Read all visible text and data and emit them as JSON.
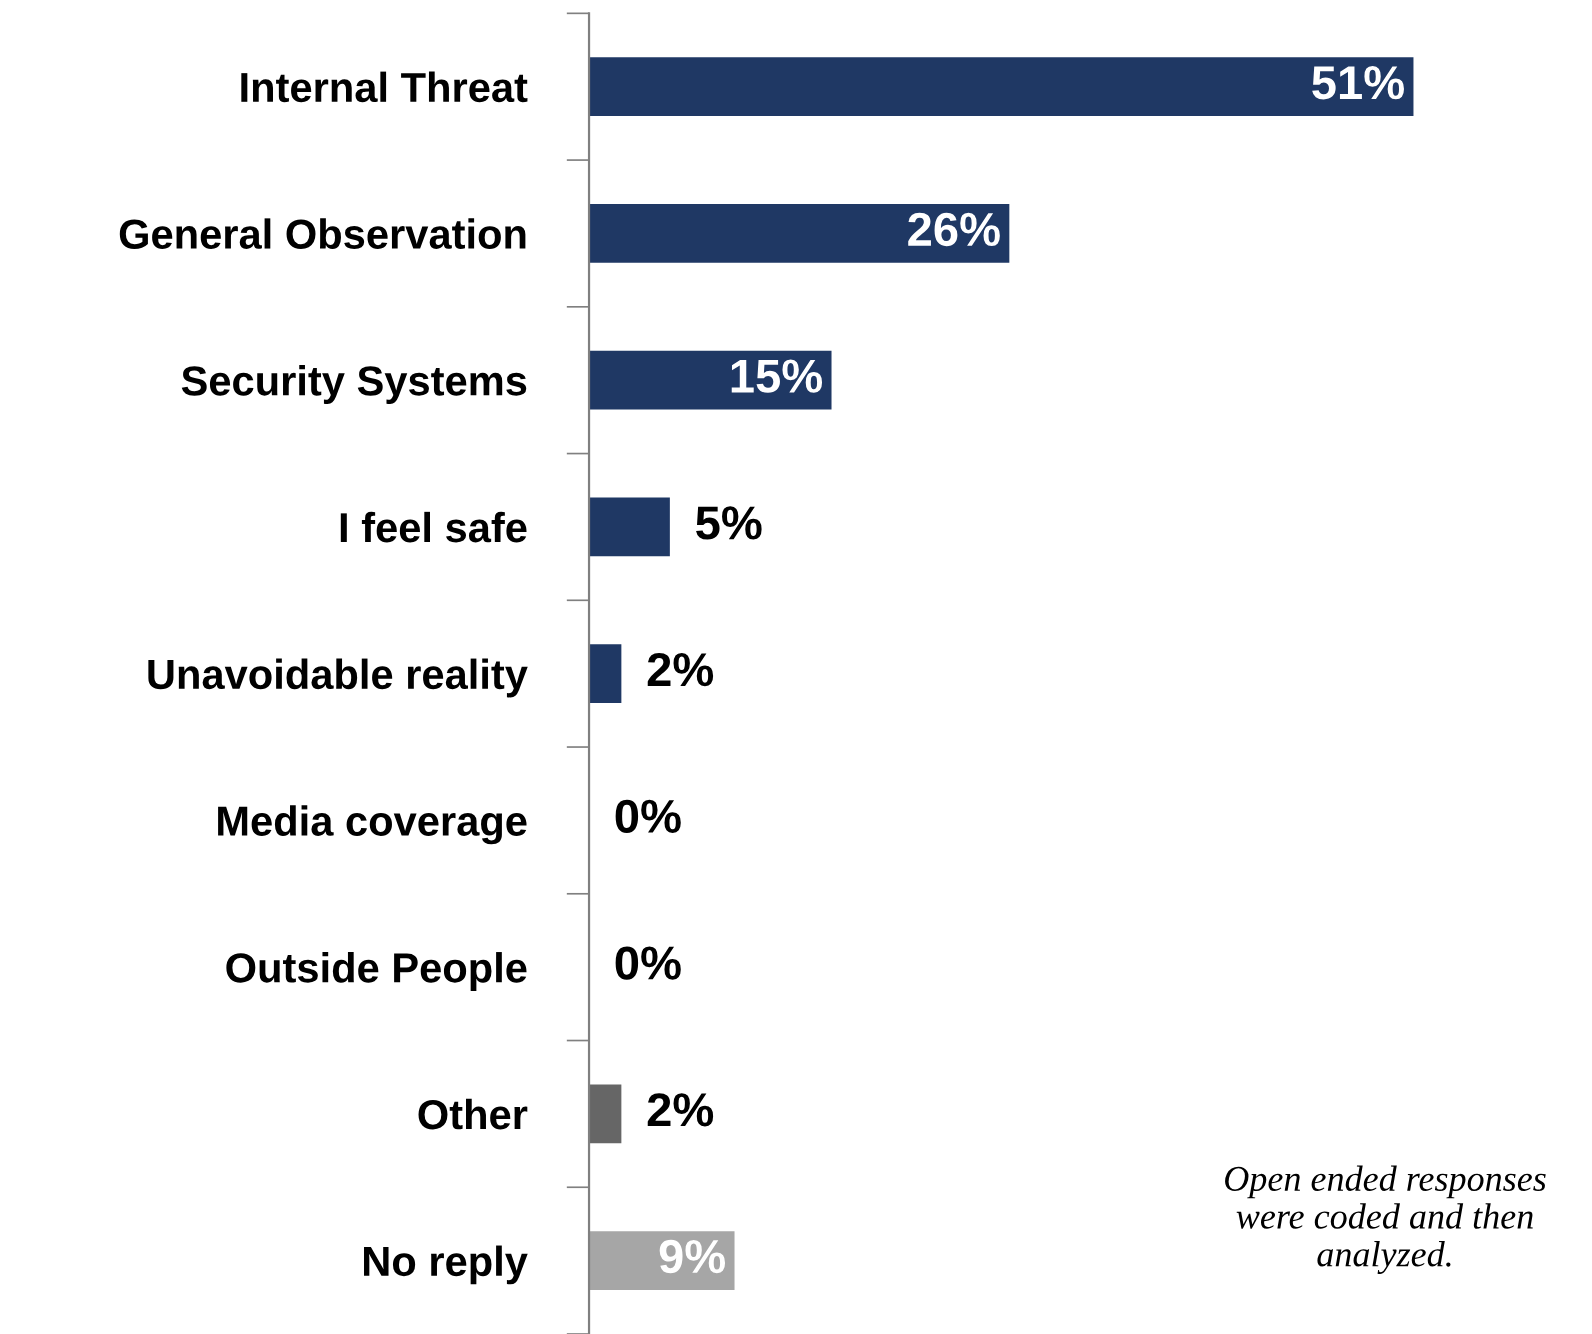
{
  "chart_data": {
    "type": "bar",
    "orientation": "horizontal",
    "categories": [
      "Internal Threat",
      "General Observation",
      "Security Systems",
      "I feel safe",
      "Unavoidable reality",
      "Media coverage",
      "Outside People",
      "Other",
      "No reply"
    ],
    "values": [
      51,
      26,
      15,
      5,
      2,
      0,
      0,
      2,
      9
    ],
    "colors": [
      "#1f3864",
      "#1f3864",
      "#1f3864",
      "#1f3864",
      "#1f3864",
      "#1f3864",
      "#1f3864",
      "#666666",
      "#a6a6a6"
    ],
    "value_labels": [
      "51%",
      "26%",
      "15%",
      "5%",
      "2%",
      "0%",
      "0%",
      "2%",
      "9%"
    ],
    "annotations": [
      "Open ended responses\nwere coded and then\nanalyzed."
    ],
    "grid": false,
    "legend": false
  }
}
